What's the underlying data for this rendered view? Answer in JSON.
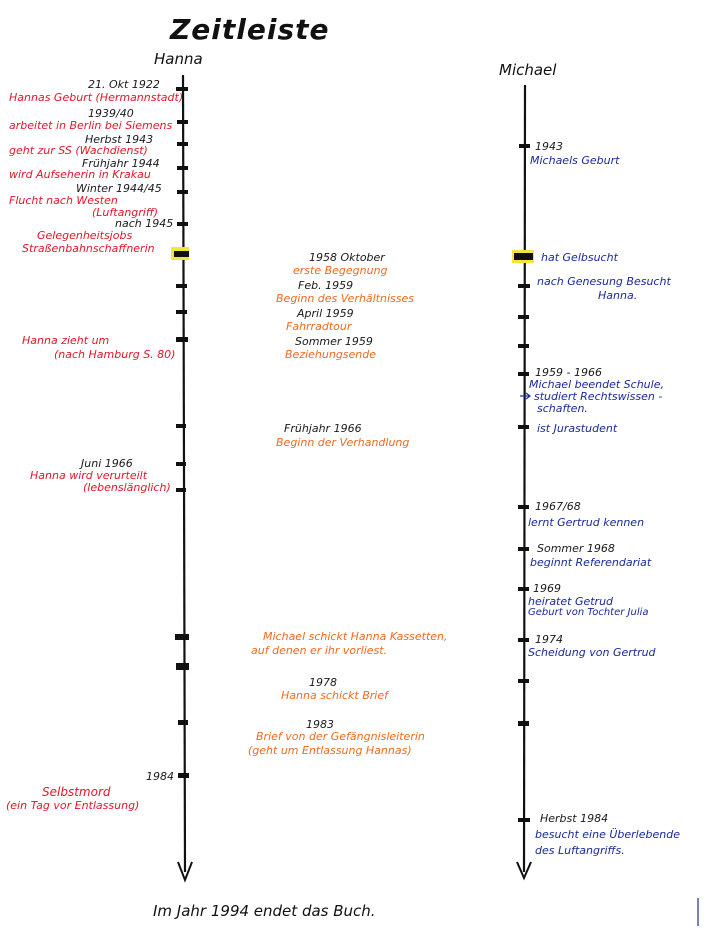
{
  "title": "Zeitleiste",
  "columns": {
    "left": "Hanna",
    "right": "Michael"
  },
  "footer": "Im Jahr 1994 endet das Buch.",
  "colors": {
    "ink": "#111111",
    "hanna": "#e3162a",
    "mid": "#ef6a1e",
    "michael": "#1a2a9a",
    "highlight": "#f1e63a"
  },
  "left": {
    "d1": "21. Okt 1922",
    "e1": "Hannas Geburt (Hermannstadt)",
    "d2": "1939/40",
    "e2": "arbeitet in Berlin bei Siemens",
    "d3": "Herbst 1943",
    "e3": "geht zur SS (Wachdienst)",
    "d4": "Frühjahr 1944",
    "e4": "wird Aufseherin in Krakau",
    "d5": "Winter 1944/45",
    "e5a": "Flucht nach Westen",
    "e5b": "(Luftangriff)",
    "d6": "nach 1945",
    "e6a": "Gelegenheitsjobs",
    "e6b": "Straßenbahnschaffnerin",
    "e7a": "Hanna zieht um",
    "e7b": "(nach Hamburg S. 80)",
    "d8": "Juni 1966",
    "e8a": "Hanna wird verurteilt",
    "e8b": "(lebenslänglich)",
    "d9": "1984",
    "e9a": "Selbstmord",
    "e9b": "(ein Tag vor Entlassung)"
  },
  "middle": {
    "d1": "1958 Oktober",
    "e1": "erste Begegnung",
    "d2": "Feb. 1959",
    "e2": "Beginn des Verhältnisses",
    "d3": "April 1959",
    "e3": "Fahrradtour",
    "d4": "Sommer 1959",
    "e4": "Beziehungsende",
    "d5": "Frühjahr 1966",
    "e5": "Beginn der Verhandlung",
    "e6a": "Michael schickt Hanna Kassetten,",
    "e6b": "auf denen er ihr vorliest.",
    "d7": "1978",
    "e7": "Hanna schickt Brief",
    "d8": "1983",
    "e8a": "Brief von der Gefängnisleiterin",
    "e8b": "(geht um Entlassung Hannas)"
  },
  "right": {
    "d1": "1943",
    "e1": "Michaels Geburt",
    "e2": "hat Gelbsucht",
    "e3a": "nach Genesung Besucht",
    "e3b": "Hanna.",
    "d4": "1959 - 1966",
    "e4a": "Michael beendet Schule,",
    "e4b": "studiert Rechtswissen -",
    "e4c": "schaften.",
    "e5": "ist Jurastudent",
    "d6": "1967/68",
    "e6": "lernt Gertrud kennen",
    "d7": "Sommer 1968",
    "e7": "beginnt Referendariat",
    "d8": "1969",
    "e8a": "heiratet Getrud",
    "e8b": "Geburt von Tochter Julia",
    "d9": "1974",
    "e9": "Scheidung von Gertrud",
    "d10": "Herbst 1984",
    "e10a": "besucht eine Überlebende",
    "e10b": "des Luftangriffs."
  }
}
